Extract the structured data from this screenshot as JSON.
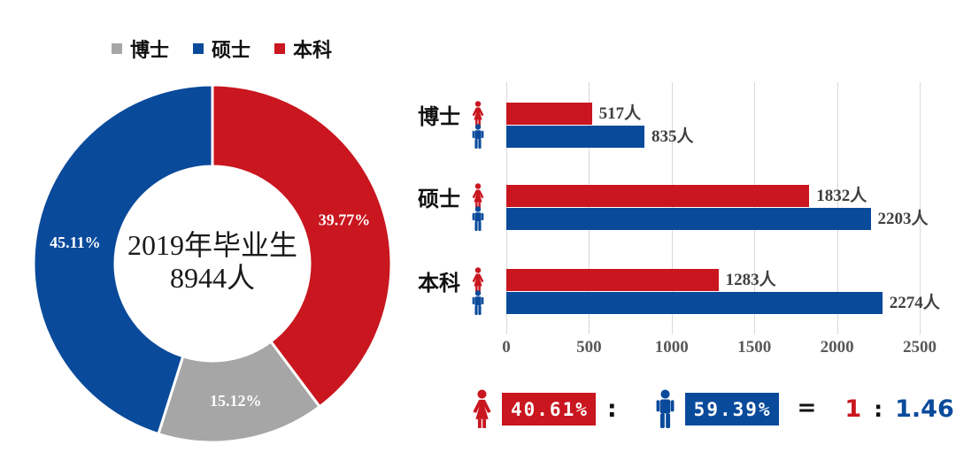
{
  "colors": {
    "red": "#C9161F",
    "blue": "#0A4A9B",
    "gray": "#A6A6A6",
    "axis_text": "#595959",
    "gridline": "#D9D9D9",
    "label_text": "#3F3F3F",
    "text": "#111111",
    "white": "#FFFFFF"
  },
  "legend": {
    "items": [
      {
        "label": "博士",
        "color_key": "gray"
      },
      {
        "label": "硕士",
        "color_key": "blue"
      },
      {
        "label": "本科",
        "color_key": "red"
      }
    ]
  },
  "chart_data": [
    {
      "type": "pie",
      "donut": true,
      "title": "2019年毕业生 8944人",
      "center_text": [
        "2019年毕业生",
        "8944人"
      ],
      "start_angle_deg": 0,
      "direction": "clockwise",
      "labels": [
        "本科",
        "博士",
        "硕士"
      ],
      "values": [
        39.77,
        15.12,
        45.11
      ],
      "value_labels": [
        "39.77%",
        "15.12%",
        "45.11%"
      ],
      "color_keys": [
        "red",
        "gray",
        "blue"
      ],
      "legend_position": "top-left"
    },
    {
      "type": "bar",
      "orientation": "horizontal",
      "categories": [
        "博士",
        "硕士",
        "本科"
      ],
      "series": [
        {
          "name": "女",
          "color_key": "red",
          "values": [
            517,
            1832,
            1283
          ],
          "value_labels": [
            "517人",
            "1832人",
            "1283人"
          ]
        },
        {
          "name": "男",
          "color_key": "blue",
          "values": [
            835,
            2203,
            2274
          ],
          "value_labels": [
            "835人",
            "2203人",
            "2274人"
          ]
        }
      ],
      "xlim": [
        0,
        2500
      ],
      "x_ticks": [
        "0",
        "500",
        "1000",
        "1500",
        "2000",
        "2500"
      ],
      "grid": true,
      "legend_position": "none"
    }
  ],
  "summary": {
    "female_pct": "40.61%",
    "colon": ":",
    "male_pct": "59.39%",
    "equals": "=",
    "ratio_left": "1",
    "ratio_colon": ":",
    "ratio_right": "1.46"
  }
}
